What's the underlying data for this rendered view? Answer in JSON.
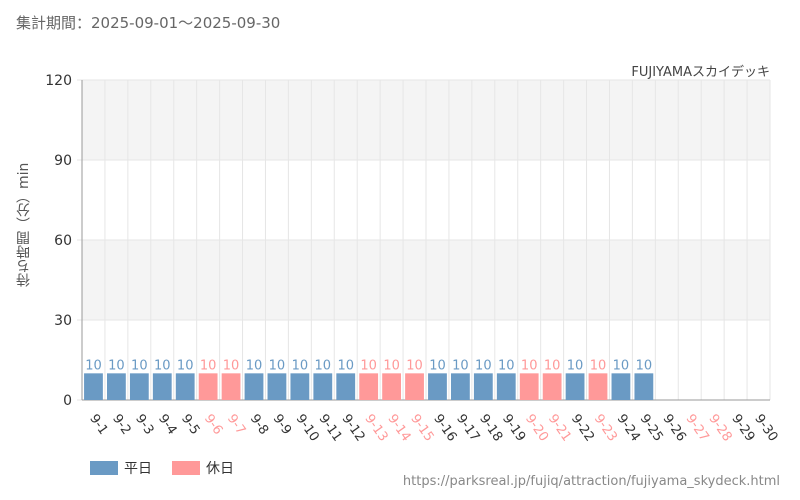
{
  "header": {
    "period": "集計期間：2025-09-01～2025-09-30"
  },
  "attraction": "FUJIYAMAスカイデッキ",
  "legend": {
    "weekday_label": "平日",
    "holiday_label": "休日"
  },
  "source_url": "https://parksreal.jp/fujiq/attraction/fujiyama_skydeck.html",
  "colors": {
    "weekday": "#6a9ac4",
    "holiday": "#ff9999",
    "grid": "#e6e6e6",
    "band": "#f4f4f4"
  },
  "chart_data": {
    "type": "bar",
    "ylabel": "待ち時間（分）min",
    "ylim": [
      0,
      120
    ],
    "yticks": [
      0,
      30,
      60,
      90,
      120
    ],
    "grid": true,
    "legend_position": "bottom-left",
    "categories": [
      "9-1",
      "9-2",
      "9-3",
      "9-4",
      "9-5",
      "9-6",
      "9-7",
      "9-8",
      "9-9",
      "9-10",
      "9-11",
      "9-12",
      "9-13",
      "9-14",
      "9-15",
      "9-16",
      "9-17",
      "9-18",
      "9-19",
      "9-20",
      "9-21",
      "9-22",
      "9-23",
      "9-24",
      "9-25",
      "9-26",
      "9-27",
      "9-28",
      "9-29",
      "9-30"
    ],
    "day_types": [
      "weekday",
      "weekday",
      "weekday",
      "weekday",
      "weekday",
      "holiday",
      "holiday",
      "weekday",
      "weekday",
      "weekday",
      "weekday",
      "weekday",
      "holiday",
      "holiday",
      "holiday",
      "weekday",
      "weekday",
      "weekday",
      "weekday",
      "holiday",
      "holiday",
      "weekday",
      "holiday",
      "weekday",
      "weekday",
      "weekday",
      "holiday",
      "holiday",
      "weekday",
      "weekday"
    ],
    "values": [
      10,
      10,
      10,
      10,
      10,
      10,
      10,
      10,
      10,
      10,
      10,
      10,
      10,
      10,
      10,
      10,
      10,
      10,
      10,
      10,
      10,
      10,
      10,
      10,
      10,
      null,
      null,
      null,
      null,
      null
    ]
  }
}
